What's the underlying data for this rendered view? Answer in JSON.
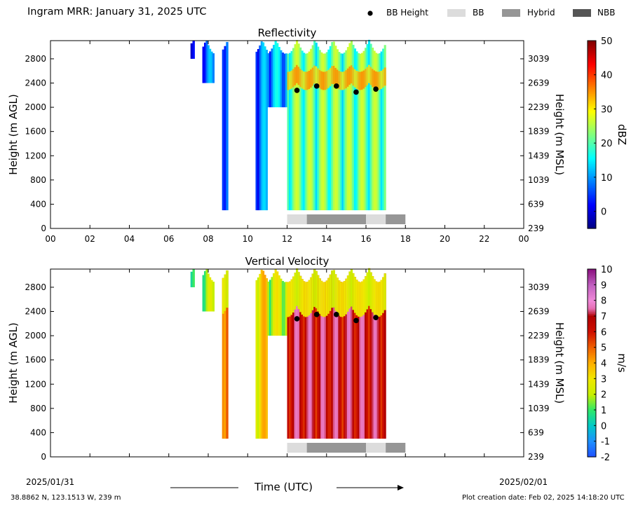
{
  "suptitle": "Ingram MRR:  January 31, 2025 UTC",
  "legend": [
    {
      "label": "BB Height",
      "marker": "dot",
      "color": "#000000"
    },
    {
      "label": "BB",
      "marker": "box",
      "color": "#dcdcdc"
    },
    {
      "label": "Hybrid",
      "marker": "box",
      "color": "#969696"
    },
    {
      "label": "NBB",
      "marker": "box",
      "color": "#555555"
    }
  ],
  "xaxis": {
    "label": "Time (UTC)",
    "ticks": [
      "00",
      "02",
      "04",
      "06",
      "08",
      "10",
      "12",
      "14",
      "16",
      "18",
      "20",
      "22",
      "00"
    ],
    "ticks_bottom": [
      "00 UTC",
      "02",
      "04",
      "06",
      "08",
      "10",
      "12",
      "14",
      "16",
      "18",
      "20",
      "22",
      "00 UTC"
    ],
    "start_date": "2025/01/31",
    "end_date": "2025/02/01",
    "range_hours": [
      0,
      24
    ]
  },
  "left_axis": {
    "label": "Height (m AGL)",
    "ticks": [
      "0",
      "400",
      "800",
      "1200",
      "1600",
      "2000",
      "2400",
      "2800"
    ],
    "range": [
      0,
      3100
    ]
  },
  "right_axis": {
    "label": "Height (m MSL)",
    "ticks": [
      "239",
      "639",
      "1039",
      "1439",
      "1839",
      "2239",
      "2639",
      "3039"
    ]
  },
  "footer": {
    "location": "38.8862 N, 123.1513 W, 239 m",
    "creation": "Plot creation date: Feb 02, 2025 14:18:20 UTC"
  },
  "chart_data": [
    {
      "type": "heatmap",
      "title": "Reflectivity",
      "xlabel": "",
      "ylabel": "Height (m AGL)",
      "ylabel_right": "Height (m MSL)",
      "colorbar": {
        "label": "dBZ",
        "ticks": [
          "50",
          "40",
          "30",
          "20",
          "10",
          "0"
        ],
        "range": [
          -5,
          50
        ],
        "colormap": "jet"
      },
      "xlim": [
        0,
        24
      ],
      "ylim": [
        0,
        3100
      ],
      "echo_periods": [
        {
          "start": 7.1,
          "end": 7.3,
          "bottom": 2800,
          "top": 3000,
          "value": 5
        },
        {
          "start": 7.7,
          "end": 8.3,
          "bottom": 2400,
          "top": 3000,
          "value": 6
        },
        {
          "start": 8.7,
          "end": 9.0,
          "bottom": 300,
          "top": 3000,
          "value": 8
        },
        {
          "start": 10.4,
          "end": 11.0,
          "bottom": 300,
          "top": 3000,
          "value": 7
        },
        {
          "start": 11.0,
          "end": 12.0,
          "bottom": 2000,
          "top": 3000,
          "value": 10
        },
        {
          "start": 12.0,
          "end": 17.0,
          "bottom": 300,
          "top": 3000,
          "value": 20
        }
      ],
      "bb_height": {
        "x": [
          12.5,
          13.5,
          14.5,
          15.5,
          16.5
        ],
        "y": [
          2280,
          2350,
          2350,
          2250,
          2300
        ]
      },
      "bb_type_bar": [
        {
          "start": 12.0,
          "end": 13.0,
          "type": "BB"
        },
        {
          "start": 13.0,
          "end": 16.0,
          "type": "Hybrid"
        },
        {
          "start": 16.0,
          "end": 17.0,
          "type": "BB"
        },
        {
          "start": 17.0,
          "end": 18.0,
          "type": "Hybrid"
        }
      ]
    },
    {
      "type": "heatmap",
      "title": "Vertical Velocity",
      "xlabel": "Time (UTC)",
      "ylabel": "Height (m AGL)",
      "ylabel_right": "Height (m MSL)",
      "colorbar": {
        "label": "m/s",
        "ticks": [
          "10",
          "9",
          "8",
          "7",
          "6",
          "5",
          "4",
          "3",
          "2",
          "1",
          "0",
          "-1",
          "-2"
        ],
        "range": [
          -2,
          10
        ]
      },
      "xlim": [
        0,
        24
      ],
      "ylim": [
        0,
        3100
      ],
      "echo_periods": [
        {
          "start": 7.1,
          "end": 7.3,
          "bottom": 2800,
          "top": 3000,
          "value": 1.5
        },
        {
          "start": 7.7,
          "end": 8.3,
          "bottom": 2400,
          "top": 3000,
          "value": 1.5
        },
        {
          "start": 8.7,
          "end": 9.0,
          "bottom": 300,
          "top": 3000,
          "value": 5
        },
        {
          "start": 10.4,
          "end": 11.0,
          "bottom": 300,
          "top": 3000,
          "value": 3
        },
        {
          "start": 11.0,
          "end": 12.0,
          "bottom": 2000,
          "top": 3000,
          "value": 2
        },
        {
          "start": 12.0,
          "end": 17.0,
          "bottom": 300,
          "top": 3000,
          "value": 6.5
        }
      ],
      "bb_height": {
        "x": [
          12.5,
          13.5,
          14.5,
          15.5,
          16.5
        ],
        "y": [
          2280,
          2350,
          2350,
          2250,
          2300
        ]
      },
      "bb_type_bar": [
        {
          "start": 12.0,
          "end": 13.0,
          "type": "BB"
        },
        {
          "start": 13.0,
          "end": 16.0,
          "type": "Hybrid"
        },
        {
          "start": 16.0,
          "end": 17.0,
          "type": "BB"
        },
        {
          "start": 17.0,
          "end": 18.0,
          "type": "Hybrid"
        }
      ]
    }
  ]
}
